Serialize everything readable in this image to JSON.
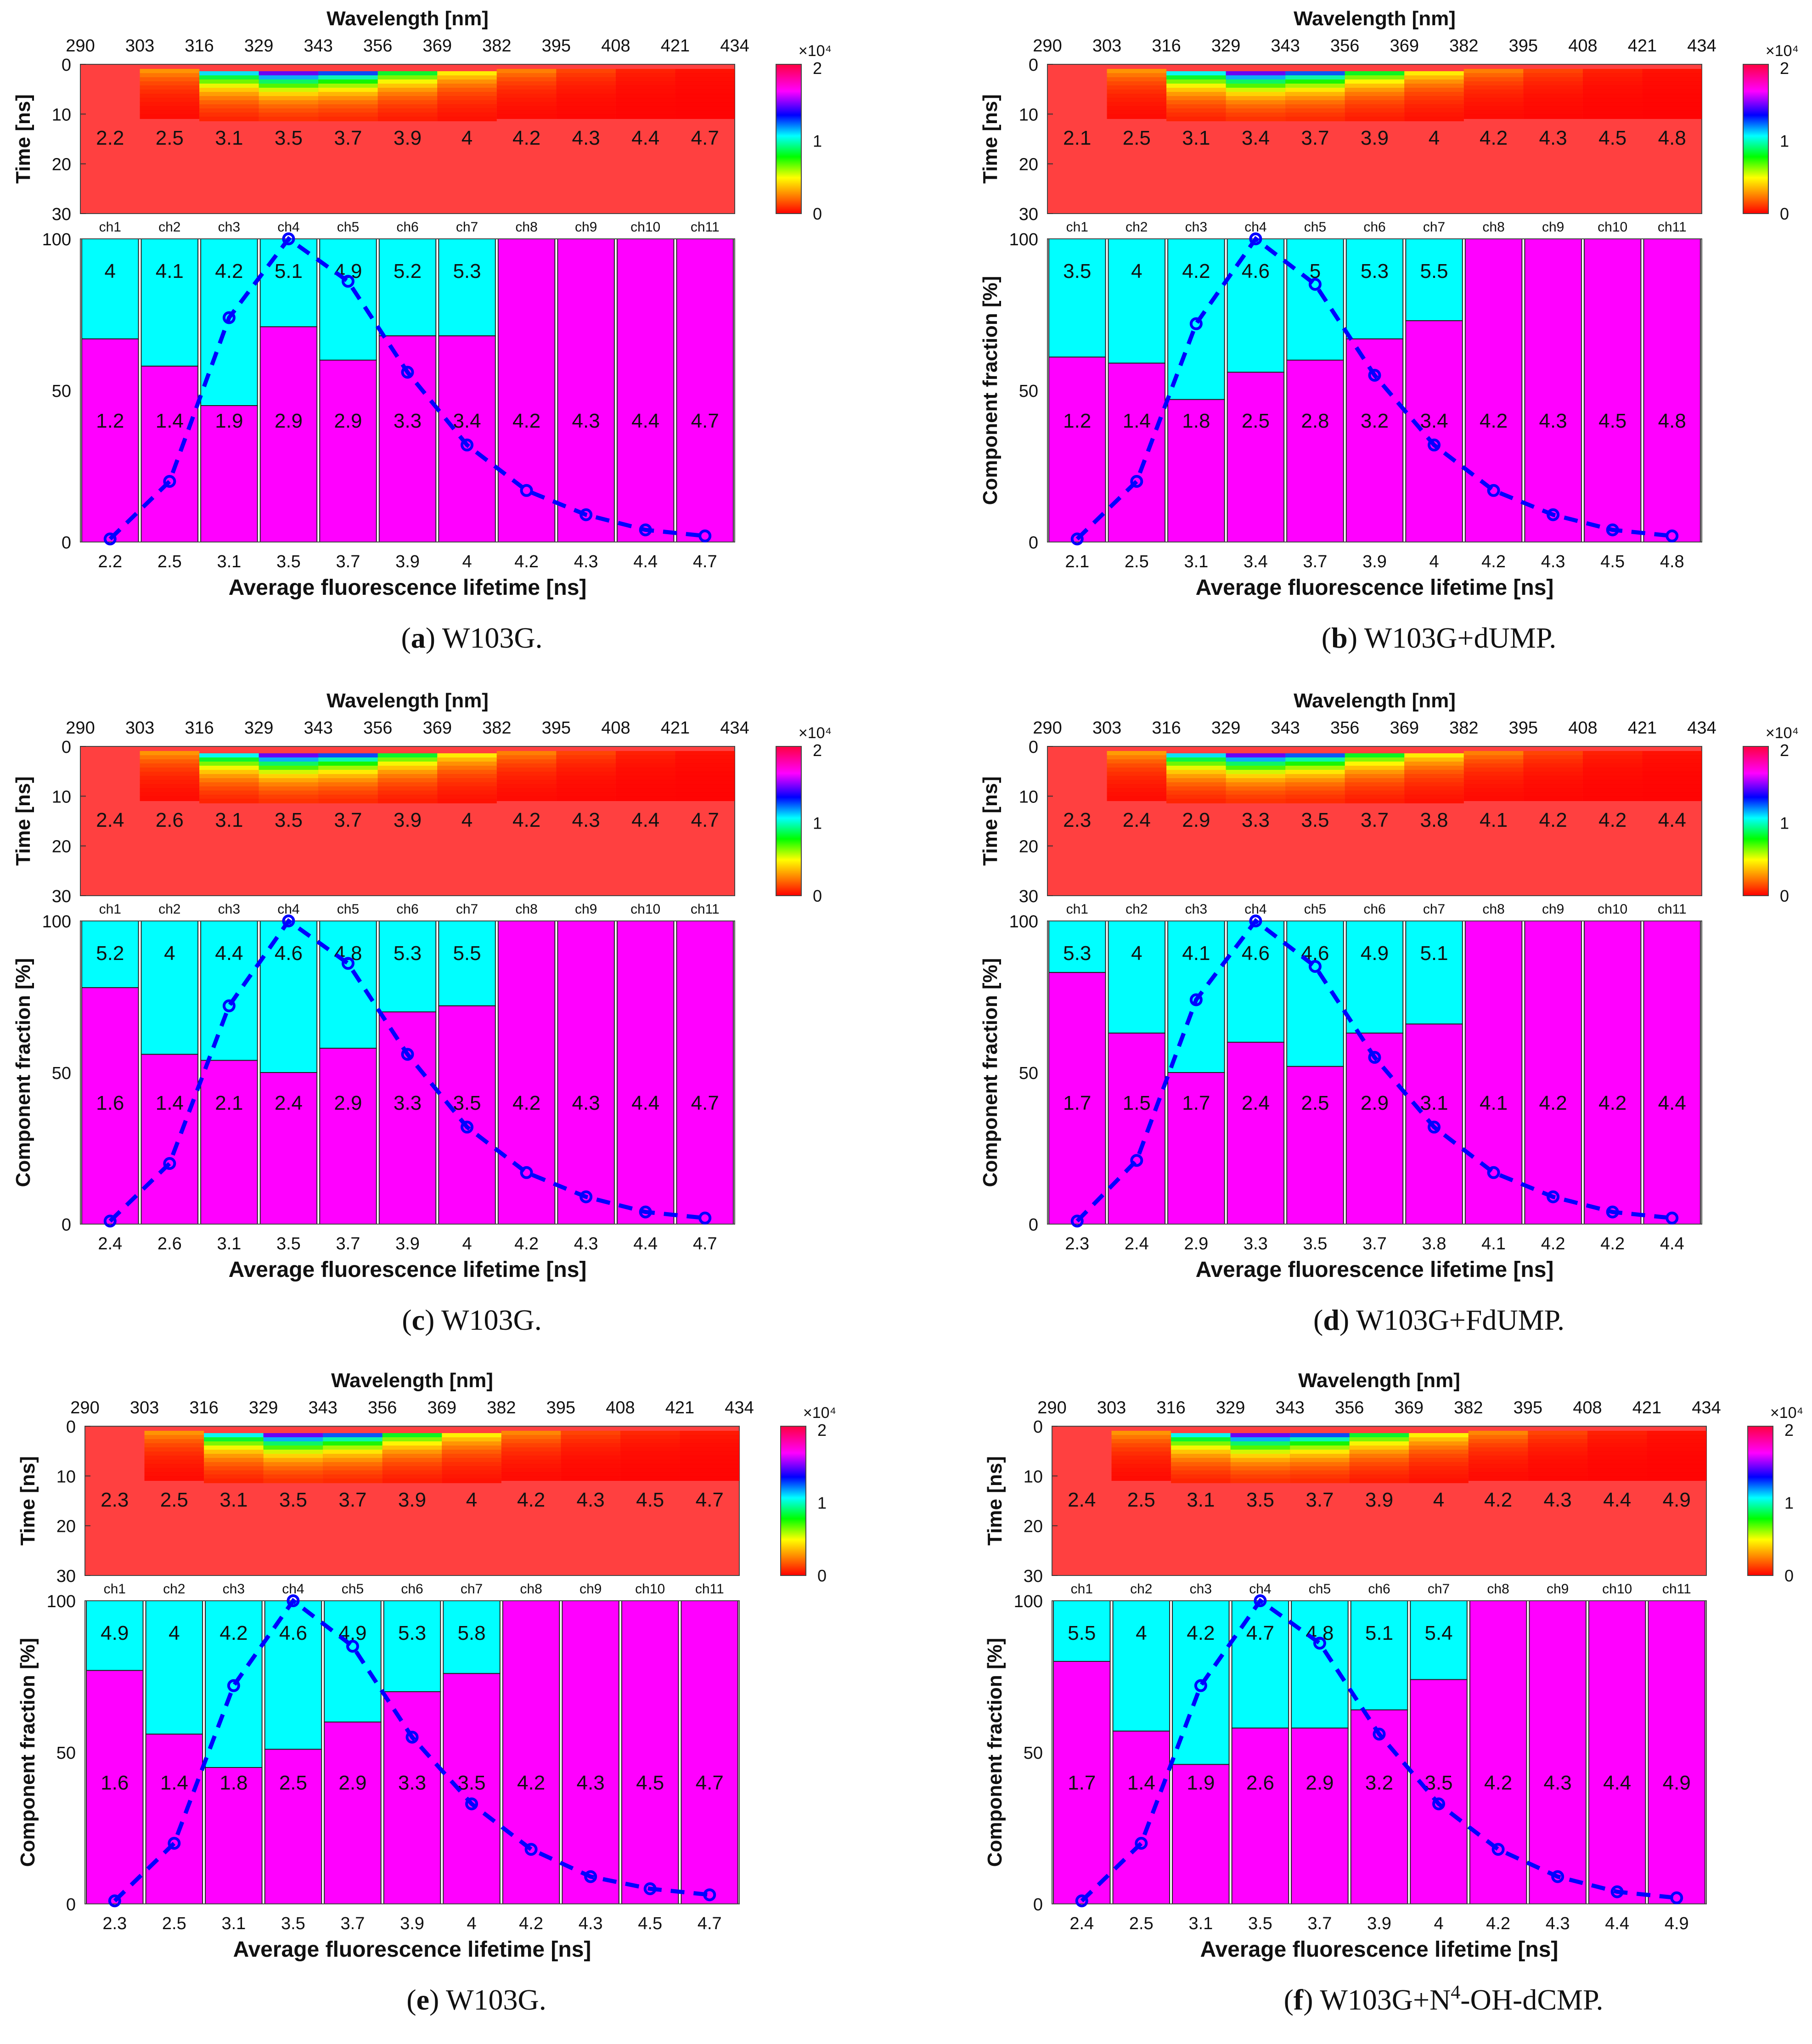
{
  "figure": {
    "wavelength_axis_label": "Wavelength [nm]",
    "time_axis_label": "Time [ns]",
    "fraction_axis_label": "Component fraction [%]",
    "lifetime_axis_label": "Average fluorescence lifetime [ns]",
    "wavelength_ticks": [
      290,
      303,
      316,
      329,
      343,
      356,
      369,
      382,
      395,
      408,
      421,
      434
    ],
    "time_ticks": [
      0,
      10,
      20,
      30
    ],
    "fraction_ticks": [
      0,
      50,
      100
    ],
    "colorbar_ticks": [
      0,
      1,
      2
    ],
    "colorbar_exponent": "×10⁴",
    "channels": [
      "ch1",
      "ch2",
      "ch3",
      "ch4",
      "ch5",
      "ch6",
      "ch7",
      "ch8",
      "ch9",
      "ch10",
      "ch11"
    ]
  },
  "chart_data": [
    {
      "type": "bar",
      "panel": "a",
      "caption": {
        "letter": "a",
        "text": "W103G."
      },
      "title": "",
      "xlabel": "Average fluorescence lifetime [ns]",
      "ylabel": "",
      "ylim": [
        0,
        100
      ],
      "categories": [
        "ch1",
        "ch2",
        "ch3",
        "ch4",
        "ch5",
        "ch6",
        "ch7",
        "ch8",
        "ch9",
        "ch10",
        "ch11"
      ],
      "avg_lifetime": [
        2.2,
        2.5,
        3.1,
        3.5,
        3.7,
        3.9,
        4,
        4.2,
        4.3,
        4.4,
        4.7
      ],
      "series": [
        {
          "name": "short component (magenta)",
          "color": "#ff00ff",
          "values": [
            67,
            58,
            45,
            71,
            60,
            68,
            68,
            100,
            100,
            100,
            100
          ],
          "lifetimes": [
            1.2,
            1.4,
            1.9,
            2.9,
            2.9,
            3.3,
            3.4,
            4.2,
            4.3,
            4.4,
            4.7
          ]
        },
        {
          "name": "long component (cyan)",
          "color": "#00ffff",
          "values": [
            33,
            42,
            55,
            29,
            40,
            32,
            32,
            0,
            0,
            0,
            0
          ],
          "lifetimes": [
            4,
            4.1,
            4.2,
            5.1,
            4.9,
            5.2,
            5.3,
            null,
            null,
            null,
            null
          ]
        },
        {
          "name": "normalized intensity",
          "color": "#0000ff",
          "style": "dashed line with circles",
          "values": [
            1,
            20,
            74,
            100,
            86,
            56,
            32,
            17,
            9,
            4,
            2
          ]
        }
      ]
    },
    {
      "type": "bar",
      "panel": "b",
      "caption": {
        "letter": "b",
        "text": "W103G+dUMP."
      },
      "title": "",
      "xlabel": "Average fluorescence lifetime [ns]",
      "ylabel": "Component fraction [%]",
      "ylim": [
        0,
        100
      ],
      "categories": [
        "ch1",
        "ch2",
        "ch3",
        "ch4",
        "ch5",
        "ch6",
        "ch7",
        "ch8",
        "ch9",
        "ch10",
        "ch11"
      ],
      "avg_lifetime": [
        2.1,
        2.5,
        3.1,
        3.4,
        3.7,
        3.9,
        4,
        4.2,
        4.3,
        4.5,
        4.8
      ],
      "series": [
        {
          "name": "short component (magenta)",
          "color": "#ff00ff",
          "values": [
            61,
            59,
            47,
            56,
            60,
            67,
            73,
            100,
            100,
            100,
            100
          ],
          "lifetimes": [
            1.2,
            1.4,
            1.8,
            2.5,
            2.8,
            3.2,
            3.4,
            4.2,
            4.3,
            4.5,
            4.8
          ]
        },
        {
          "name": "long component (cyan)",
          "color": "#00ffff",
          "values": [
            39,
            41,
            53,
            44,
            40,
            33,
            27,
            0,
            0,
            0,
            0
          ],
          "lifetimes": [
            3.5,
            4,
            4.2,
            4.6,
            5,
            5.3,
            5.5,
            null,
            null,
            null,
            null
          ]
        },
        {
          "name": "normalized intensity",
          "color": "#0000ff",
          "style": "dashed line with circles",
          "values": [
            1,
            20,
            72,
            100,
            85,
            55,
            32,
            17,
            9,
            4,
            2
          ]
        }
      ]
    },
    {
      "type": "bar",
      "panel": "c",
      "caption": {
        "letter": "c",
        "text": "W103G."
      },
      "title": "",
      "xlabel": "Average fluorescence lifetime [ns]",
      "ylabel": "Component fraction [%]",
      "ylim": [
        0,
        100
      ],
      "categories": [
        "ch1",
        "ch2",
        "ch3",
        "ch4",
        "ch5",
        "ch6",
        "ch7",
        "ch8",
        "ch9",
        "ch10",
        "ch11"
      ],
      "avg_lifetime": [
        2.4,
        2.6,
        3.1,
        3.5,
        3.7,
        3.9,
        4,
        4.2,
        4.3,
        4.4,
        4.7
      ],
      "series": [
        {
          "name": "short component (magenta)",
          "color": "#ff00ff",
          "values": [
            78,
            56,
            54,
            50,
            58,
            70,
            72,
            100,
            100,
            100,
            100
          ],
          "lifetimes": [
            1.6,
            1.4,
            2.1,
            2.4,
            2.9,
            3.3,
            3.5,
            4.2,
            4.3,
            4.4,
            4.7
          ]
        },
        {
          "name": "long component (cyan)",
          "color": "#00ffff",
          "values": [
            22,
            44,
            46,
            50,
            42,
            30,
            28,
            0,
            0,
            0,
            0
          ],
          "lifetimes": [
            5.2,
            4,
            4.4,
            4.6,
            4.8,
            5.3,
            5.5,
            null,
            null,
            null,
            null
          ]
        },
        {
          "name": "normalized intensity",
          "color": "#0000ff",
          "style": "dashed line with circles",
          "values": [
            1,
            20,
            72,
            100,
            86,
            56,
            32,
            17,
            9,
            4,
            2
          ]
        }
      ]
    },
    {
      "type": "bar",
      "panel": "d",
      "caption": {
        "letter": "d",
        "text": "W103G+FdUMP."
      },
      "title": "",
      "xlabel": "Average fluorescence lifetime [ns]",
      "ylabel": "Component fraction [%]",
      "ylim": [
        0,
        100
      ],
      "categories": [
        "ch1",
        "ch2",
        "ch3",
        "ch4",
        "ch5",
        "ch6",
        "ch7",
        "ch8",
        "ch9",
        "ch10",
        "ch11"
      ],
      "avg_lifetime": [
        2.3,
        2.4,
        2.9,
        3.3,
        3.5,
        3.7,
        3.8,
        4.1,
        4.2,
        4.2,
        4.4
      ],
      "series": [
        {
          "name": "short component (magenta)",
          "color": "#ff00ff",
          "values": [
            83,
            63,
            50,
            60,
            52,
            63,
            66,
            100,
            100,
            100,
            100
          ],
          "lifetimes": [
            1.7,
            1.5,
            1.7,
            2.4,
            2.5,
            2.9,
            3.1,
            4.1,
            4.2,
            4.2,
            4.4
          ]
        },
        {
          "name": "long component (cyan)",
          "color": "#00ffff",
          "values": [
            17,
            37,
            50,
            40,
            48,
            37,
            34,
            0,
            0,
            0,
            0
          ],
          "lifetimes": [
            5.3,
            4,
            4.1,
            4.6,
            4.6,
            4.9,
            5.1,
            null,
            null,
            null,
            null
          ]
        },
        {
          "name": "normalized intensity",
          "color": "#0000ff",
          "style": "dashed line with circles",
          "values": [
            1,
            21,
            74,
            100,
            85,
            55,
            32,
            17,
            9,
            4,
            2
          ]
        }
      ]
    },
    {
      "type": "bar",
      "panel": "e",
      "caption": {
        "letter": "e",
        "text": "W103G."
      },
      "title": "",
      "xlabel": "Average fluorescence lifetime [ns]",
      "ylabel": "Component fraction [%]",
      "ylim": [
        0,
        100
      ],
      "categories": [
        "ch1",
        "ch2",
        "ch3",
        "ch4",
        "ch5",
        "ch6",
        "ch7",
        "ch8",
        "ch9",
        "ch10",
        "ch11"
      ],
      "avg_lifetime": [
        2.3,
        2.5,
        3.1,
        3.5,
        3.7,
        3.9,
        4,
        4.2,
        4.3,
        4.5,
        4.7
      ],
      "series": [
        {
          "name": "short component (magenta)",
          "color": "#ff00ff",
          "values": [
            77,
            56,
            45,
            51,
            60,
            70,
            76,
            100,
            100,
            100,
            100
          ],
          "lifetimes": [
            1.6,
            1.4,
            1.8,
            2.5,
            2.9,
            3.3,
            3.5,
            4.2,
            4.3,
            4.5,
            4.7
          ]
        },
        {
          "name": "long component (cyan)",
          "color": "#00ffff",
          "values": [
            23,
            44,
            55,
            49,
            40,
            30,
            24,
            0,
            0,
            0,
            0
          ],
          "lifetimes": [
            4.9,
            4,
            4.2,
            4.6,
            4.9,
            5.3,
            5.8,
            null,
            null,
            null,
            null
          ]
        },
        {
          "name": "normalized intensity",
          "color": "#0000ff",
          "style": "dashed line with circles",
          "values": [
            1,
            20,
            72,
            100,
            85,
            55,
            33,
            18,
            9,
            5,
            3
          ]
        }
      ]
    },
    {
      "type": "bar",
      "panel": "f",
      "caption": {
        "letter": "f",
        "text": "W103G+N",
        "superscript": "4",
        "text_after": "-OH-dCMP."
      },
      "title": "",
      "xlabel": "Average fluorescence lifetime [ns]",
      "ylabel": "Component fraction [%]",
      "ylim": [
        0,
        100
      ],
      "categories": [
        "ch1",
        "ch2",
        "ch3",
        "ch4",
        "ch5",
        "ch6",
        "ch7",
        "ch8",
        "ch9",
        "ch10",
        "ch11"
      ],
      "avg_lifetime": [
        2.4,
        2.5,
        3.1,
        3.5,
        3.7,
        3.9,
        4,
        4.2,
        4.3,
        4.4,
        4.9
      ],
      "series": [
        {
          "name": "short component (magenta)",
          "color": "#ff00ff",
          "values": [
            80,
            57,
            46,
            58,
            58,
            64,
            74,
            100,
            100,
            100,
            100
          ],
          "lifetimes": [
            1.7,
            1.4,
            1.9,
            2.6,
            2.9,
            3.2,
            3.5,
            4.2,
            4.3,
            4.4,
            4.9
          ]
        },
        {
          "name": "long component (cyan)",
          "color": "#00ffff",
          "values": [
            20,
            43,
            54,
            42,
            42,
            36,
            26,
            0,
            0,
            0,
            0
          ],
          "lifetimes": [
            5.5,
            4,
            4.2,
            4.7,
            4.8,
            5.1,
            5.4,
            null,
            null,
            null,
            null
          ]
        },
        {
          "name": "normalized intensity",
          "color": "#0000ff",
          "style": "dashed line with circles",
          "values": [
            1,
            20,
            72,
            100,
            86,
            56,
            33,
            18,
            9,
            4,
            2
          ]
        }
      ]
    }
  ]
}
